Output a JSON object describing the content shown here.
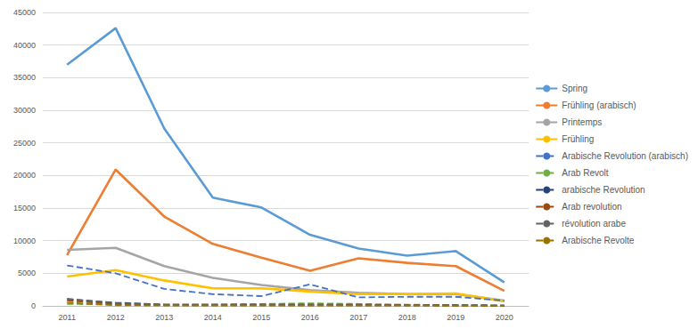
{
  "chart_data": {
    "type": "line",
    "categories": [
      "2011",
      "2012",
      "2013",
      "2014",
      "2015",
      "2016",
      "2017",
      "2018",
      "2019",
      "2020"
    ],
    "ylim": [
      0,
      45000
    ],
    "yticks": [
      0,
      5000,
      10000,
      15000,
      20000,
      25000,
      30000,
      35000,
      40000,
      45000
    ],
    "grid": true,
    "legend": "right",
    "series": [
      {
        "name": "Spring",
        "color": "#5B9BD5",
        "line_style": "solid",
        "values": [
          37000,
          42600,
          27200,
          16600,
          15100,
          10900,
          8800,
          7700,
          8400,
          3600
        ]
      },
      {
        "name": "Frühling (arabisch)",
        "color": "#ED7D31",
        "line_style": "solid",
        "values": [
          7800,
          20900,
          13700,
          9500,
          7400,
          5400,
          7300,
          6600,
          6100,
          2300
        ]
      },
      {
        "name": "Printemps",
        "color": "#A5A5A5",
        "line_style": "solid",
        "values": [
          8600,
          8900,
          6100,
          4300,
          3200,
          2400,
          2000,
          1800,
          1800,
          800
        ]
      },
      {
        "name": "Frühling",
        "color": "#FFC000",
        "line_style": "solid",
        "values": [
          4500,
          5500,
          3900,
          2700,
          2700,
          2200,
          1800,
          1800,
          1900,
          700
        ]
      },
      {
        "name": "Arabische Revolution (arabisch)",
        "color": "#4472C4",
        "line_style": "dashed",
        "values": [
          6200,
          5000,
          2600,
          1800,
          1500,
          3300,
          1300,
          1400,
          1400,
          800
        ]
      },
      {
        "name": "Arab Revolt",
        "color": "#70AD47",
        "line_style": "dashed",
        "values": [
          300,
          200,
          200,
          200,
          300,
          400,
          300,
          200,
          100,
          50
        ]
      },
      {
        "name": "arabische Revolution",
        "color": "#264478",
        "line_style": "dashed",
        "values": [
          1000,
          500,
          200,
          200,
          200,
          200,
          200,
          100,
          100,
          50
        ]
      },
      {
        "name": "Arab revolution",
        "color": "#9E480E",
        "line_style": "dashed",
        "values": [
          800,
          300,
          100,
          100,
          100,
          100,
          100,
          100,
          50,
          30
        ]
      },
      {
        "name": "révolution arabe",
        "color": "#636363",
        "line_style": "dashed",
        "values": [
          1100,
          400,
          200,
          200,
          200,
          200,
          100,
          100,
          100,
          50
        ]
      },
      {
        "name": "Arabische Revolte",
        "color": "#997300",
        "line_style": "dashed",
        "values": [
          500,
          100,
          50,
          50,
          50,
          50,
          50,
          50,
          30,
          20
        ]
      }
    ]
  }
}
